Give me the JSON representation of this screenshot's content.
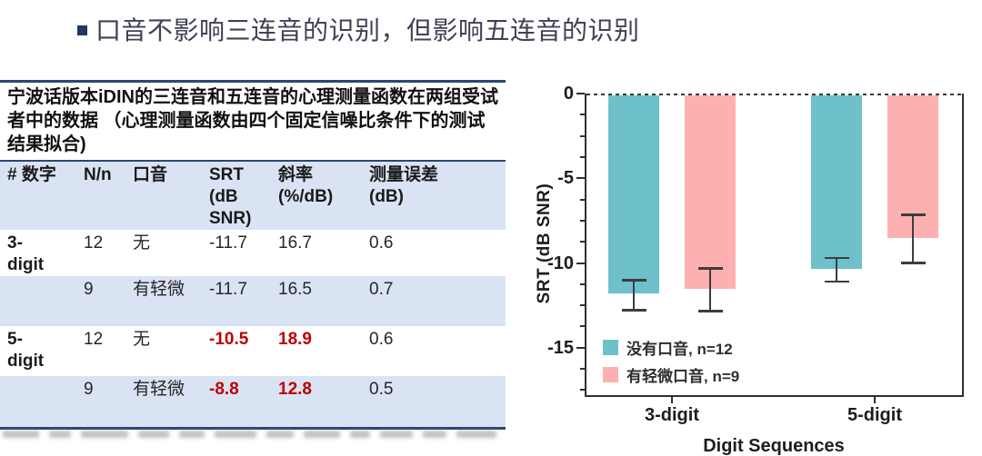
{
  "title": {
    "text": "口音不影响三连音的识别，但影响五连音的识别"
  },
  "table": {
    "caption": "宁波话版本iDIN的三连音和五连音的心理测量函数在两组受试者中的数据 （心理测量函数由四个固定信噪比条件下的测试结果拟合)",
    "columns": [
      "# 数字",
      "N/n",
      "口音",
      "SRT (dB SNR)",
      "斜率 (%/dB)",
      "测量误差 (dB)"
    ],
    "rows": [
      {
        "group": "3-digit",
        "n": "12",
        "accent": "无",
        "srt": "-11.7",
        "slope": "16.7",
        "error": "0.6"
      },
      {
        "group": "",
        "n": "9",
        "accent": "有轻微",
        "srt": "-11.7",
        "slope": "16.5",
        "error": "0.7"
      },
      {
        "group": "5-digit",
        "n": "12",
        "accent": "无",
        "srt": "-10.5",
        "slope": "18.9",
        "error": "0.6"
      },
      {
        "group": "",
        "n": "9",
        "accent": "有轻微",
        "srt": "-8.8",
        "slope": "12.8",
        "error": "0.5"
      }
    ],
    "highlight_color": "#c00000",
    "header_fill": "#dae3f3",
    "border_color": "#2c4770"
  },
  "chart_data": {
    "type": "bar",
    "categories": [
      "3-digit",
      "5-digit"
    ],
    "series": [
      {
        "name": "没有口音, n=12",
        "color": "#6ec0cb",
        "values": [
          -11.8,
          -10.35
        ],
        "error_upper": [
          -11.0,
          -9.7
        ],
        "error_lower": [
          -12.8,
          -11.1
        ]
      },
      {
        "name": "有轻微口音, n=9",
        "color": "#fcb1b0",
        "values": [
          -11.55,
          -8.55
        ],
        "error_upper": [
          -10.3,
          -7.15
        ],
        "error_lower": [
          -12.85,
          -10.0
        ]
      }
    ],
    "title": "",
    "xlabel": "Digit Sequences",
    "ylabel": "SRT (dB SNR)",
    "ylim": [
      0,
      -17.8
    ],
    "yticks": [
      0,
      -5,
      -10,
      -15
    ],
    "minor_tick_step": 1.25,
    "grid": false,
    "legend_position": "inside lower-left",
    "zero_line_style": "dashed"
  }
}
